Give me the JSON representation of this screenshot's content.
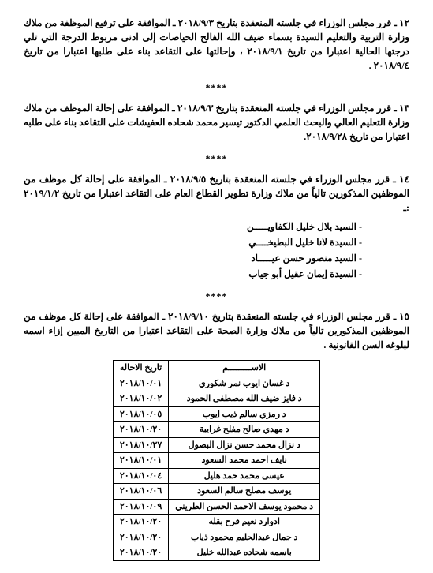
{
  "items": [
    {
      "num": "١٢",
      "text": "ـ قرر مجلس الوزراء في جلسته المنعقدة بتاريخ ٢٠١٨/٩/٣ ـ الموافقة على ترفيع الموظفة من ملاك وزارة التربية والتعليم السيدة بسماء ضيف الله الفالح الحياصات إلى ادنى مربوط الدرجة التي تلي درجتها الحالية اعتبارا من تاريخ ٢٠١٨/٩/١ ، وإحالتها على التقاعد بناء على طلبها اعتبارا من تاريخ ٢٠١٨/٩/٤ ."
    },
    {
      "num": "١٣",
      "text": "ـ قرر مجلس الوزراء في جلسته المنعقدة بتاريخ ٢٠١٨/٩/٣ ـ الموافقة على إحالة الموظف من ملاك وزارة التعليم العالي والبحث العلمي الدكتور تيسير محمد شحاده العفيشات على التقاعد بناء على طلبه اعتبارا من تاريخ ٢٠١٨/٩/٢٨."
    },
    {
      "num": "١٤",
      "text": "ـ قرر مجلس الوزراء في جلسته المنعقدة بتاريخ ٢٠١٨/٩/٥ ـ الموافقة على إحالة كل موظف من الموظفين المذكورين تالياً من ملاك وزارة تطوير القطاع العام على التقاعد اعتبارا من تاريخ ٢٠١٩/١/٢ :ـ",
      "sublist": [
        "- السيد بلال خليل الكفاويـــــن",
        "- السيدة لانا خليل البطيخــــي",
        "- السيد منصور حسن عيـــــاد",
        "- السيدة إيمان عقيل أبو جياب"
      ]
    },
    {
      "num": "١٥",
      "text": "ـ قرر مجلس الوزراء في جلسته المنعقدة بتاريخ ٢٠١٨/٩/١٠ ـ الموافقة على إحالة كل موظف من الموظفين المذكورين تالياً من ملاك وزارة الصحة على التقاعد اعتبارا من التاريخ المبين إزاء اسمه لبلوغه السن القانونية ."
    }
  ],
  "separator": "****",
  "table": {
    "headers": [
      "الاســـــــــم",
      "تاريخ الاحاله"
    ],
    "rows": [
      [
        "د غسان ايوب نمر شكوري",
        "٢٠١٨/١٠/٠١"
      ],
      [
        "د فايز ضيف الله مصطفى الحمود",
        "٢٠١٨/١٠/٠٢"
      ],
      [
        "د رمزي سالم ذيب ايوب",
        "٢٠١٨/١٠/٠٥"
      ],
      [
        "د مهدي صالح مفلح غرايبة",
        "٢٠١٨/١٠/٢٠"
      ],
      [
        "د نزال محمد حسن نزال البصول",
        "٢٠١٨/١٠/٢٧"
      ],
      [
        "نايف احمد محمد السعود",
        "٢٠١٨/١٠/٠١"
      ],
      [
        "عيسى محمد حمد هليل",
        "٢٠١٨/١٠/٠٤"
      ],
      [
        "يوسف مصلح سالم السعود",
        "٢٠١٨/١٠/٠٦"
      ],
      [
        "د محمود يوسف الاحمد الحسن الطريني",
        "٢٠١٨/١٠/٠٩"
      ],
      [
        "ادوارد نعيم فرح بقله",
        "٢٠١٨/١٠/٢٠"
      ],
      [
        "د جمال عبدالحليم محمود ذياب",
        "٢٠١٨/١٠/٢٠"
      ],
      [
        "باسمه شحاده عبدالله خليل",
        "٢٠١٨/١٠/٢٠"
      ]
    ]
  }
}
